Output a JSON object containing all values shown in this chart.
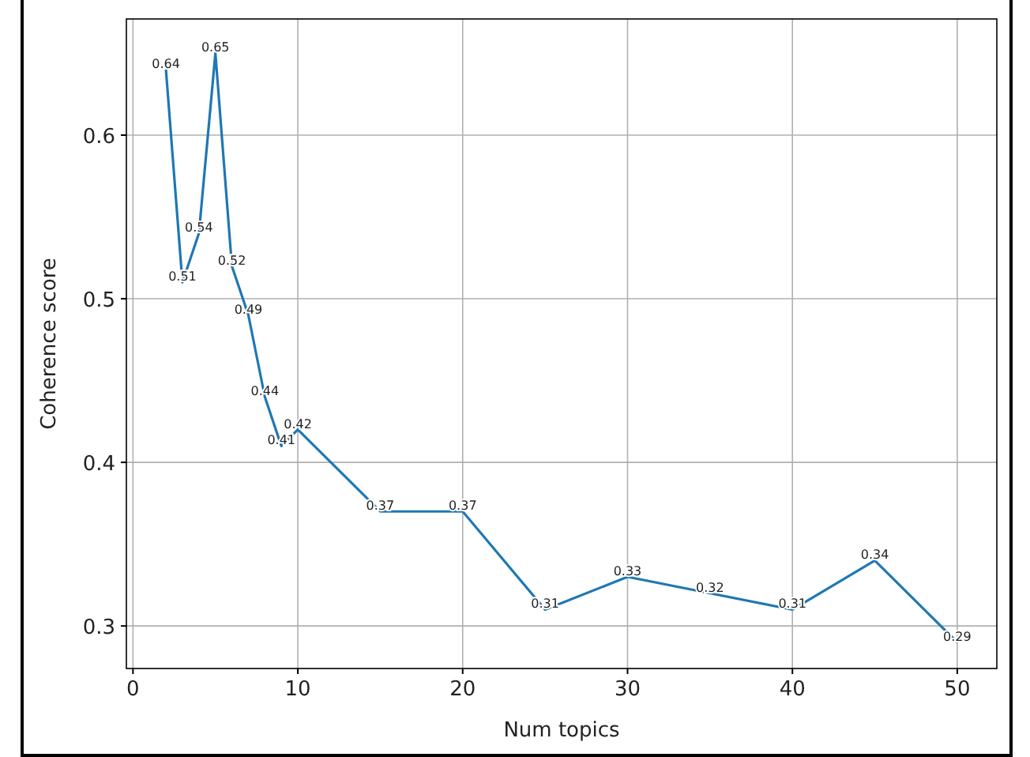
{
  "chart_data": {
    "type": "line",
    "xlabel": "Num topics",
    "ylabel": "Coherence score",
    "x": [
      2,
      3,
      4,
      5,
      6,
      7,
      8,
      9,
      10,
      15,
      20,
      25,
      30,
      35,
      40,
      45,
      50
    ],
    "series": [
      {
        "color": "#1f77b4",
        "values": [
          0.64,
          0.51,
          0.54,
          0.65,
          0.52,
          0.49,
          0.44,
          0.41,
          0.42,
          0.37,
          0.37,
          0.31,
          0.33,
          0.32,
          0.31,
          0.34,
          0.29
        ]
      }
    ],
    "data_labels": true,
    "grid": true,
    "xlim": [
      -0.4,
      52.4
    ],
    "xticks": [
      0,
      10,
      20,
      30,
      40,
      50
    ],
    "ylim": [
      0.274,
      0.671
    ],
    "yticks": [
      0.3,
      0.4,
      0.5,
      0.6
    ]
  }
}
